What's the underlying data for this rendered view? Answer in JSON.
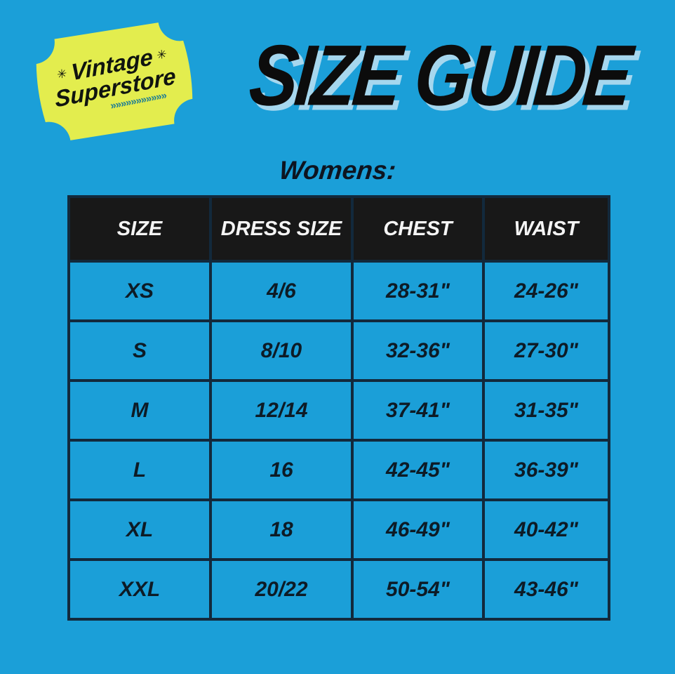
{
  "page": {
    "background_color": "#1b9fd8",
    "border_color": "#12293c",
    "header_bg_color": "#181818",
    "title_shadow_color": "#a6d7ee",
    "badge_color": "#e3ed4e",
    "chevron_color": "#1f7d93"
  },
  "logo": {
    "line1": "Vintage",
    "line2": "Superstore",
    "sparkle_glyph": "✳",
    "chevrons": "»»»»»»»»»»»"
  },
  "title": {
    "text": "SIZE GUIDE"
  },
  "section_label": "Womens:",
  "table": {
    "headers": [
      "SIZE",
      "DRESS SIZE",
      "CHEST",
      "WAIST"
    ],
    "rows": [
      [
        "XS",
        "4/6",
        "28-31\"",
        "24-26\""
      ],
      [
        "S",
        "8/10",
        "32-36\"",
        "27-30\""
      ],
      [
        "M",
        "12/14",
        "37-41\"",
        "31-35\""
      ],
      [
        "L",
        "16",
        "42-45\"",
        "36-39\""
      ],
      [
        "XL",
        "18",
        "46-49\"",
        "40-42\""
      ],
      [
        "XXL",
        "20/22",
        "50-54\"",
        "43-46\""
      ]
    ]
  }
}
